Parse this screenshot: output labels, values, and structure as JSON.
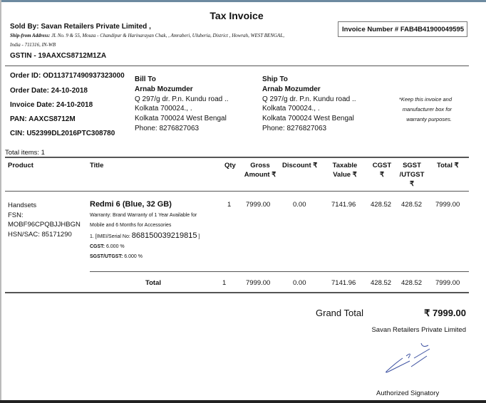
{
  "title": "Tax Invoice",
  "seller": {
    "sold_by": "Sold By: Savan Retailers Private Limited ,",
    "ship_from_label": "Ship-from Address:",
    "ship_from_line1": "JL No. 9 & 55, Mouza - Chandipur & Harinarayan Chak, , Amraberi, Uluberia, District , Howrah, WEST BENGAL,",
    "ship_from_line2": "India - 711316, IN-WB",
    "gstin": "GSTIN - 19AAXCS8712M1ZA"
  },
  "invoice_number": "Invoice Number # FAB4B41900049595",
  "order": {
    "order_id": "Order ID: OD113717490937323000",
    "order_date": "Order Date: 24-10-2018",
    "invoice_date": "Invoice Date: 24-10-2018",
    "pan": "PAN: AAXCS8712M",
    "cin": "CIN: U52399DL2016PTC308780"
  },
  "bill_to": {
    "heading": "Bill To",
    "name": "Arnab Mozumder",
    "line1": "Q 297/g dr. P.n. Kundu road ..",
    "line2": "Kolkata 700024., .",
    "line3": "Kolkata 700024 West Bengal",
    "phone": "Phone: 8276827063"
  },
  "ship_to": {
    "heading": "Ship To",
    "name": "Arnab Mozumder",
    "line1": "Q 297/g dr. P.n. Kundu road ..",
    "line2": "Kolkata 700024., .",
    "line3": "Kolkata 700024 West Bengal",
    "phone": "Phone: 8276827063"
  },
  "note": [
    "*Keep this invoice and",
    "manufacturer box for",
    "warranty purposes."
  ],
  "total_items": "Total items: 1",
  "table": {
    "headers": {
      "product": "Product",
      "title": "Title",
      "qty": "Qty",
      "gross1": "Gross",
      "gross2": "Amount ₹",
      "discount": "Discount ₹",
      "taxable1": "Taxable",
      "taxable2": "Value ₹",
      "cgst1": "CGST",
      "cgst2": "₹",
      "sgst1": "SGST",
      "sgst2": "/UTGST",
      "sgst3": "₹",
      "total": "Total ₹"
    },
    "row": {
      "product": [
        "Handsets",
        "FSN:",
        "MOBF96CPQBJJHBGN",
        "HSN/SAC: 85171290"
      ],
      "title": "Redmi 6 (Blue, 32 GB)",
      "warranty1": "Warranty: Brand Warranty of 1 Year Available for",
      "warranty2": "Mobile and 6 Months for Accessories",
      "imei_prefix": "1. [IMEI/Serial No:",
      "imei": "868150039219815",
      "imei_suffix": "]",
      "cgst_label": "CGST:",
      "cgst_rate": "6.000 %",
      "sgst_label": "SGST/UTGST:",
      "sgst_rate": "6.000 %",
      "qty": "1",
      "gross": "7999.00",
      "discount": "0.00",
      "taxable": "7141.96",
      "cgst": "428.52",
      "sgst": "428.52",
      "total": "7999.00"
    },
    "total_row": {
      "label": "Total",
      "qty": "1",
      "gross": "7999.00",
      "discount": "0.00",
      "taxable": "7141.96",
      "cgst": "428.52",
      "sgst": "428.52",
      "total": "7999.00"
    }
  },
  "grand_total": {
    "label": "Grand Total",
    "value": "₹ 7999.00"
  },
  "signatory": {
    "company": "Savan Retailers Private Limited",
    "label": "Authorized Signatory"
  },
  "colors": {
    "signature": "#3a4fa0",
    "top_border": "#6d8aa0"
  }
}
